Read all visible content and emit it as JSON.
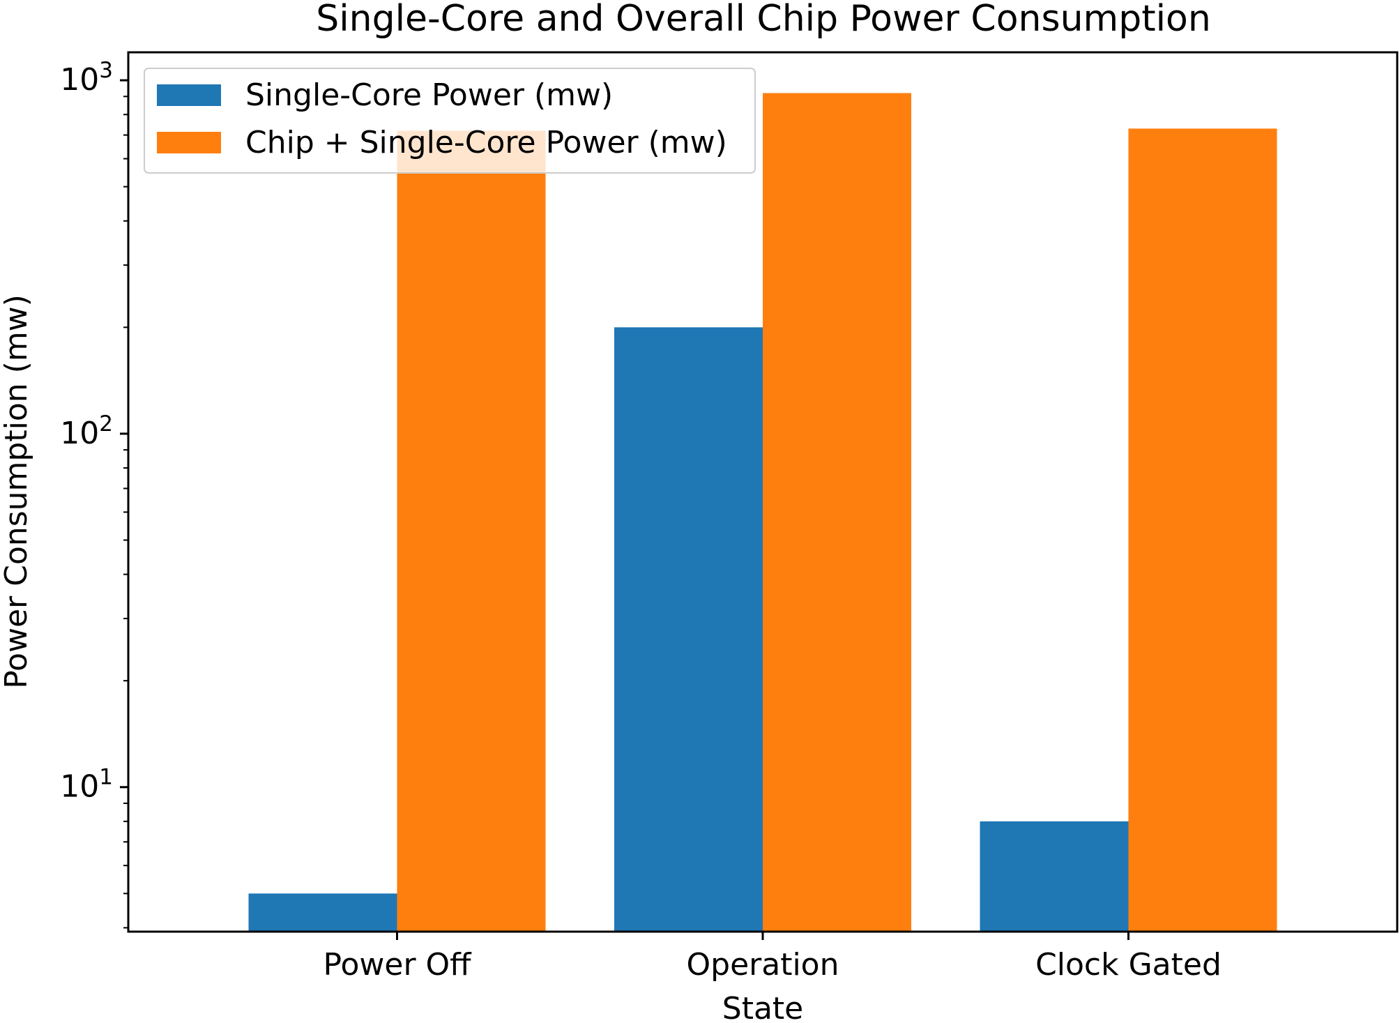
{
  "chart_data": {
    "type": "bar",
    "title": "Single-Core and Overall Chip Power Consumption",
    "xlabel": "State",
    "ylabel": "Power Consumption (mw)",
    "categories": [
      "Power Off",
      "Operation",
      "Clock Gated"
    ],
    "yscale": "log",
    "ylim": [
      3.9,
      1200
    ],
    "ytick_labels": [
      {
        "value": 10,
        "base": "10",
        "exp": "1"
      },
      {
        "value": 100,
        "base": "10",
        "exp": "2"
      },
      {
        "value": 1000,
        "base": "10",
        "exp": "3"
      }
    ],
    "series": [
      {
        "name": "Single-Core Power (mw)",
        "color": "#1f77b4",
        "values": [
          5,
          200,
          8
        ]
      },
      {
        "name": "Chip + Single-Core Power (mw)",
        "color": "#ff7f0e",
        "values": [
          720,
          920,
          730
        ]
      }
    ],
    "legend": "top-left",
    "grid": false
  }
}
